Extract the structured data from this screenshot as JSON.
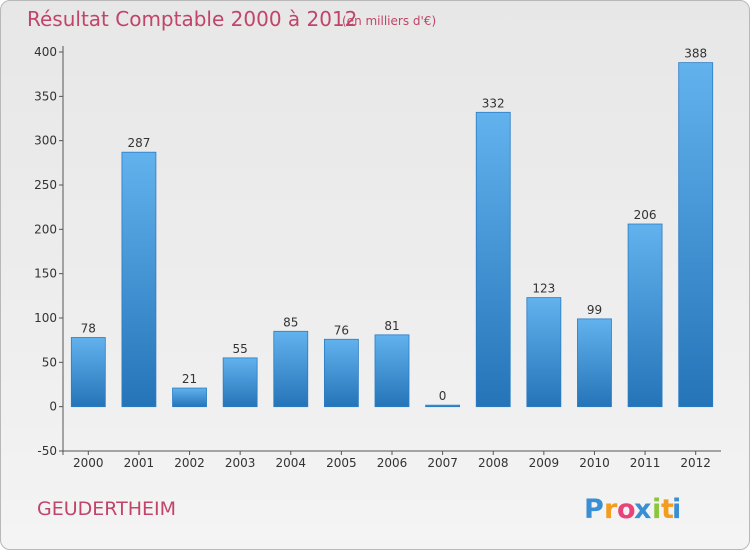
{
  "title": "Résultat Comptable 2000 à 2012",
  "subtitle": "(en milliers d'€)",
  "commune": "GEUDERTHEIM",
  "logo": {
    "text": "Proxiti",
    "letters": [
      "P",
      "r",
      "o",
      "x",
      "i",
      "t",
      "i"
    ],
    "colors": [
      "#3a8fd4",
      "#f39c1f",
      "#e8447a",
      "#3a8fd4",
      "#8cc63f",
      "#f39c1f",
      "#3a8fd4"
    ]
  },
  "colors": {
    "bar": "#4a9de2",
    "bar_light": "#62b2ee",
    "bar_dark": "#2574b8",
    "title": "#c1446a"
  },
  "chart_data": {
    "type": "bar",
    "categories": [
      "2000",
      "2001",
      "2002",
      "2003",
      "2004",
      "2005",
      "2006",
      "2007",
      "2008",
      "2009",
      "2010",
      "2011",
      "2012"
    ],
    "values": [
      78,
      287,
      21,
      55,
      85,
      76,
      81,
      0,
      332,
      123,
      99,
      206,
      388
    ],
    "ylim": [
      -50,
      400
    ],
    "yticks": [
      -50,
      0,
      50,
      100,
      150,
      200,
      250,
      300,
      350,
      400
    ],
    "grid": false,
    "legend": "none"
  }
}
